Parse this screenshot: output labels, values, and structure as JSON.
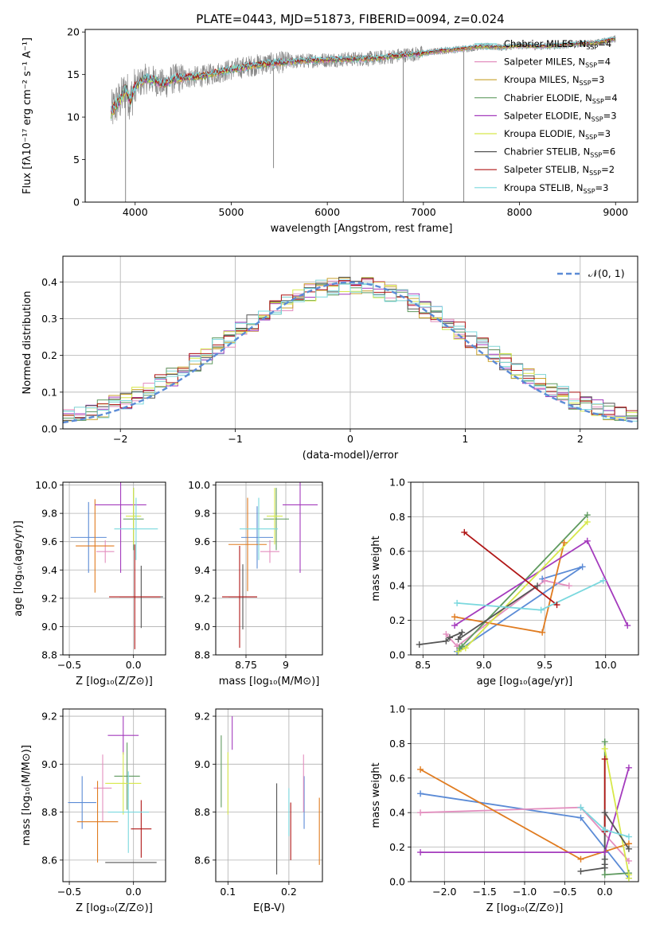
{
  "page": {
    "title": "PLATE=0443, MJD=51873, FIBERID=0094, z=0.024"
  },
  "series_colors": [
    "#7fd3d3",
    "#e38fbf",
    "#c8a12c",
    "#5f9a5f",
    "#a43bbd",
    "#d7e84a",
    "#555555",
    "#b01616",
    "#7ad8de"
  ],
  "chart_data": [
    {
      "id": "spectrum",
      "type": "line",
      "title": "PLATE=0443, MJD=51873, FIBERID=0094, z=0.024",
      "xlabel": "wavelength [Angstrom, rest frame]",
      "ylabel": "Flux [fλ10⁻¹⁷ erg cm⁻² s⁻¹ A⁻¹]",
      "xlim": [
        3480,
        9230
      ],
      "ylim": [
        0,
        20.3
      ],
      "xticks": [
        4000,
        5000,
        6000,
        7000,
        8000,
        9000
      ],
      "yticks": [
        0,
        5,
        10,
        15,
        20
      ],
      "grid": false,
      "legend_location": "right",
      "data_series_color": "#888888",
      "data_envelope": {
        "x": [
          3750,
          3800,
          3850,
          3900,
          3950,
          4000,
          4100,
          4200,
          4300,
          4400,
          4500,
          4700,
          5000,
          5300,
          5600,
          5900,
          6200,
          6500,
          6800,
          7000,
          7200,
          7400,
          7600,
          7800,
          8000,
          8200,
          8400,
          8600,
          8800,
          9000
        ],
        "y": [
          10.5,
          11.5,
          12.0,
          13.3,
          12.0,
          13.5,
          14.5,
          14.3,
          13.8,
          14.5,
          14.6,
          14.8,
          15.6,
          16.2,
          16.5,
          16.7,
          16.8,
          16.9,
          17.3,
          17.5,
          17.8,
          18.0,
          18.3,
          18.2,
          18.4,
          18.3,
          18.4,
          18.6,
          18.7,
          19.2
        ]
      },
      "spikes": [
        {
          "x": 3900,
          "y": 0
        },
        {
          "x": 5440,
          "y": 4
        },
        {
          "x": 6790,
          "y": 0
        },
        {
          "x": 7420,
          "y": 0
        }
      ],
      "legend": [
        {
          "label": "Chabrier MILES, N",
          "sub": "SSP",
          "suffix": "=4"
        },
        {
          "label": "Salpeter MILES, N",
          "sub": "SSP",
          "suffix": "=4"
        },
        {
          "label": "Kroupa MILES, N",
          "sub": "SSP",
          "suffix": "=3"
        },
        {
          "label": "Chabrier ELODIE, N",
          "sub": "SSP",
          "suffix": "=4"
        },
        {
          "label": "Salpeter ELODIE, N",
          "sub": "SSP",
          "suffix": "=3"
        },
        {
          "label": "Kroupa ELODIE, N",
          "sub": "SSP",
          "suffix": "=3"
        },
        {
          "label": "Chabrier STELIB, N",
          "sub": "SSP",
          "suffix": "=6"
        },
        {
          "label": "Salpeter STELIB, N",
          "sub": "SSP",
          "suffix": "=2"
        },
        {
          "label": "Kroupa STELIB, N",
          "sub": "SSP",
          "suffix": "=3"
        }
      ]
    },
    {
      "id": "residuals",
      "type": "histogram",
      "xlabel": "(data-model)/error",
      "ylabel": "Normed distribution",
      "xlim": [
        -2.5,
        2.5
      ],
      "ylim": [
        0,
        0.47
      ],
      "xticks": [
        -2,
        -1,
        0,
        1,
        2
      ],
      "yticks": [
        0.0,
        0.1,
        0.2,
        0.3,
        0.4
      ],
      "grid": true,
      "bin_width": 0.1,
      "reference": {
        "label": "𝒩(0, 1)",
        "mean": 0,
        "sigma": 1,
        "color": "#5b8bd6",
        "style": "dashed"
      },
      "legend_location": "top-right"
    },
    {
      "id": "age_vs_Z",
      "type": "errorbar",
      "xlabel": "Z [log₁₀(Z/Z⊙)]",
      "ylabel": "age  [log₁₀(age/yr)]",
      "xlim": [
        -0.55,
        0.25
      ],
      "ylim": [
        8.8,
        10.02
      ],
      "xticks": [
        -0.5,
        0.0
      ],
      "yticks": [
        8.8,
        9.0,
        9.2,
        9.4,
        9.6,
        9.8,
        10.0
      ],
      "grid": true,
      "points": [
        {
          "x": -0.35,
          "xerr": 0.14,
          "y": 9.63,
          "yerr": 0.25,
          "color": "#5b8bd6"
        },
        {
          "x": -0.22,
          "xerr": 0.07,
          "y": 9.53,
          "yerr": 0.08,
          "color": "#e38fbf"
        },
        {
          "x": -0.3,
          "xerr": 0.15,
          "y": 9.57,
          "yerr": 0.33,
          "color": "#e07b1f"
        },
        {
          "x": 0.0,
          "xerr": 0.08,
          "y": 9.76,
          "yerr": 0.22,
          "color": "#5f9a5f"
        },
        {
          "x": -0.1,
          "xerr": 0.2,
          "y": 9.86,
          "yerr": 0.48,
          "color": "#a43bbd"
        },
        {
          "x": 0.0,
          "xerr": 0.06,
          "y": 9.78,
          "yerr": 0.2,
          "color": "#d7e84a"
        },
        {
          "x": 0.06,
          "xerr": 0.17,
          "y": 9.21,
          "yerr": 0.22,
          "color": "#555555"
        },
        {
          "x": 0.01,
          "xerr": 0.2,
          "y": 9.21,
          "yerr": 0.37,
          "color": "#b01616"
        },
        {
          "x": 0.02,
          "xerr": 0.17,
          "y": 9.69,
          "yerr": 0.22,
          "color": "#7ad8de"
        }
      ]
    },
    {
      "id": "age_vs_mass",
      "type": "errorbar",
      "xlabel": "mass [log₁₀(M/M⊙)]",
      "ylabel": "",
      "xlim": [
        8.56,
        9.23
      ],
      "ylim": [
        8.8,
        10.02
      ],
      "xticks": [
        8.75,
        9.0
      ],
      "yticks": [
        8.8,
        9.0,
        9.2,
        9.4,
        9.6,
        9.8,
        10.0
      ],
      "grid": true,
      "points": [
        {
          "x": 8.82,
          "xerr": 0.1,
          "y": 9.63,
          "yerr": 0.22,
          "color": "#5b8bd6"
        },
        {
          "x": 8.9,
          "xerr": 0.06,
          "y": 9.53,
          "yerr": 0.08,
          "color": "#e38fbf"
        },
        {
          "x": 8.76,
          "xerr": 0.12,
          "y": 9.58,
          "yerr": 0.33,
          "color": "#e07b1f"
        },
        {
          "x": 8.94,
          "xerr": 0.08,
          "y": 9.76,
          "yerr": 0.22,
          "color": "#5f9a5f"
        },
        {
          "x": 9.09,
          "xerr": 0.11,
          "y": 9.86,
          "yerr": 0.48,
          "color": "#a43bbd"
        },
        {
          "x": 8.93,
          "xerr": 0.05,
          "y": 9.78,
          "yerr": 0.2,
          "color": "#d7e84a"
        },
        {
          "x": 8.73,
          "xerr": 0.09,
          "y": 9.21,
          "yerr": 0.23,
          "color": "#555555"
        },
        {
          "x": 8.71,
          "xerr": 0.11,
          "y": 9.21,
          "yerr": 0.36,
          "color": "#b01616"
        },
        {
          "x": 8.83,
          "xerr": 0.12,
          "y": 9.69,
          "yerr": 0.22,
          "color": "#7ad8de"
        }
      ]
    },
    {
      "id": "weight_vs_age",
      "type": "line",
      "xlabel": "age  [log₁₀(age/yr)]",
      "ylabel": "mass weight",
      "xlim": [
        8.4,
        10.27
      ],
      "ylim": [
        0.0,
        1.0
      ],
      "xticks": [
        8.5,
        9.0,
        9.5,
        10.0
      ],
      "yticks": [
        0.0,
        0.2,
        0.4,
        0.6,
        0.8,
        1.0
      ],
      "grid": true,
      "series": [
        {
          "color": "#5b8bd6",
          "x": [
            8.79,
            8.78,
            9.81,
            9.48
          ],
          "y": [
            0.02,
            0.02,
            0.51,
            0.44
          ]
        },
        {
          "color": "#e38fbf",
          "x": [
            8.69,
            8.78,
            9.5,
            9.7
          ],
          "y": [
            0.12,
            0.05,
            0.43,
            0.4
          ]
        },
        {
          "color": "#e07b1f",
          "x": [
            8.76,
            9.48,
            9.66
          ],
          "y": [
            0.22,
            0.13,
            0.65
          ]
        },
        {
          "color": "#5f9a5f",
          "x": [
            8.8,
            8.82,
            9.85
          ],
          "y": [
            0.04,
            0.05,
            0.81
          ]
        },
        {
          "color": "#a43bbd",
          "x": [
            8.76,
            9.85,
            10.18
          ],
          "y": [
            0.17,
            0.66,
            0.17
          ]
        },
        {
          "color": "#d7e84a",
          "x": [
            8.79,
            8.85,
            9.85
          ],
          "y": [
            0.02,
            0.04,
            0.77
          ]
        },
        {
          "color": "#555555",
          "x": [
            8.47,
            8.69,
            8.72,
            8.82,
            8.79,
            9.44
          ],
          "y": [
            0.06,
            0.08,
            0.1,
            0.13,
            0.09,
            0.4
          ]
        },
        {
          "color": "#b01616",
          "x": [
            8.84,
            9.6
          ],
          "y": [
            0.71,
            0.29
          ]
        },
        {
          "color": "#7ad8de",
          "x": [
            8.78,
            9.47,
            9.98
          ],
          "y": [
            0.3,
            0.26,
            0.43
          ]
        }
      ]
    },
    {
      "id": "mass_vs_Z",
      "type": "errorbar",
      "xlabel": "Z [log₁₀(Z/Z⊙)]",
      "ylabel": "mass [log₁₀(M/M⊙)]",
      "xlim": [
        -0.55,
        0.25
      ],
      "ylim": [
        8.51,
        9.23
      ],
      "xticks": [
        -0.5,
        0.0
      ],
      "yticks": [
        8.6,
        8.8,
        9.0,
        9.2
      ],
      "grid": true,
      "points": [
        {
          "x": -0.4,
          "xerr": 0.11,
          "y": 8.84,
          "yerr": 0.11,
          "color": "#5b8bd6"
        },
        {
          "x": -0.24,
          "xerr": 0.07,
          "y": 8.9,
          "yerr": 0.14,
          "color": "#e38fbf"
        },
        {
          "x": -0.28,
          "xerr": 0.16,
          "y": 8.76,
          "yerr": 0.17,
          "color": "#e07b1f"
        },
        {
          "x": -0.05,
          "xerr": 0.1,
          "y": 8.95,
          "yerr": 0.14,
          "color": "#5f9a5f"
        },
        {
          "x": -0.08,
          "xerr": 0.12,
          "y": 9.12,
          "yerr": 0.08,
          "color": "#a43bbd"
        },
        {
          "x": -0.08,
          "xerr": 0.14,
          "y": 8.92,
          "yerr": 0.13,
          "color": "#d7e84a"
        },
        {
          "x": -0.02,
          "xerr": 0.2,
          "y": 8.59,
          "yerr": 0.0,
          "color": "#555555"
        },
        {
          "x": 0.06,
          "xerr": 0.08,
          "y": 8.73,
          "yerr": 0.12,
          "color": "#b01616"
        },
        {
          "x": -0.04,
          "xerr": 0.16,
          "y": 8.8,
          "yerr": 0.17,
          "color": "#7ad8de"
        }
      ]
    },
    {
      "id": "mass_vs_EBV",
      "type": "errorbar",
      "xlabel": "E(B-V)",
      "ylabel": "",
      "xlim": [
        0.08,
        0.255
      ],
      "ylim": [
        8.51,
        9.23
      ],
      "xticks": [
        0.1,
        0.2
      ],
      "yticks": [
        8.6,
        8.8,
        9.0,
        9.2
      ],
      "grid": true,
      "points": [
        {
          "x": 0.225,
          "y": 8.84,
          "yerr": 0.11,
          "color": "#5b8bd6"
        },
        {
          "x": 0.224,
          "y": 8.92,
          "yerr": 0.12,
          "color": "#e38fbf"
        },
        {
          "x": 0.25,
          "y": 8.72,
          "yerr": 0.14,
          "color": "#e07b1f"
        },
        {
          "x": 0.089,
          "y": 8.97,
          "yerr": 0.15,
          "color": "#5f9a5f"
        },
        {
          "x": 0.107,
          "y": 9.13,
          "yerr": 0.07,
          "color": "#a43bbd"
        },
        {
          "x": 0.1,
          "y": 8.92,
          "yerr": 0.13,
          "color": "#d7e84a"
        },
        {
          "x": 0.18,
          "y": 8.73,
          "yerr": 0.19,
          "color": "#555555"
        },
        {
          "x": 0.203,
          "y": 8.72,
          "yerr": 0.12,
          "color": "#b01616"
        },
        {
          "x": 0.2,
          "y": 8.8,
          "yerr": 0.1,
          "color": "#7ad8de"
        }
      ]
    },
    {
      "id": "weight_vs_Z",
      "type": "line",
      "xlabel": "Z [log₁₀(Z/Z⊙)]",
      "ylabel": "mass weight",
      "xlim": [
        -2.42,
        0.42
      ],
      "ylim": [
        0.0,
        1.0
      ],
      "xticks": [
        -2.0,
        -1.5,
        -1.0,
        -0.5,
        0.0
      ],
      "yticks": [
        0.0,
        0.2,
        0.4,
        0.6,
        0.8,
        1.0
      ],
      "grid": true,
      "series": [
        {
          "color": "#5b8bd6",
          "x": [
            -2.3,
            -0.3,
            0.3
          ],
          "y": [
            0.51,
            0.37,
            0.02
          ]
        },
        {
          "color": "#e38fbf",
          "x": [
            -2.3,
            -0.3,
            0.3
          ],
          "y": [
            0.4,
            0.43,
            0.12
          ]
        },
        {
          "color": "#e07b1f",
          "x": [
            -2.3,
            -0.3,
            0.3
          ],
          "y": [
            0.65,
            0.13,
            0.22
          ]
        },
        {
          "color": "#5f9a5f",
          "x": [
            0.0,
            0.0,
            0.3
          ],
          "y": [
            0.81,
            0.04,
            0.05
          ]
        },
        {
          "color": "#a43bbd",
          "x": [
            -2.3,
            0.0,
            0.3
          ],
          "y": [
            0.17,
            0.17,
            0.66
          ]
        },
        {
          "color": "#d7e84a",
          "x": [
            0.0,
            0.3,
            0.3
          ],
          "y": [
            0.77,
            0.04,
            0.02
          ]
        },
        {
          "color": "#555555",
          "x": [
            -0.3,
            0.0,
            0.0,
            0.0,
            0.0,
            0.3
          ],
          "y": [
            0.06,
            0.08,
            0.1,
            0.13,
            0.4,
            0.19
          ]
        },
        {
          "color": "#b01616",
          "x": [
            0.0,
            0.0
          ],
          "y": [
            0.71,
            0.29
          ]
        },
        {
          "color": "#7ad8de",
          "x": [
            -0.3,
            0.0,
            0.3
          ],
          "y": [
            0.43,
            0.3,
            0.26
          ]
        }
      ]
    }
  ]
}
